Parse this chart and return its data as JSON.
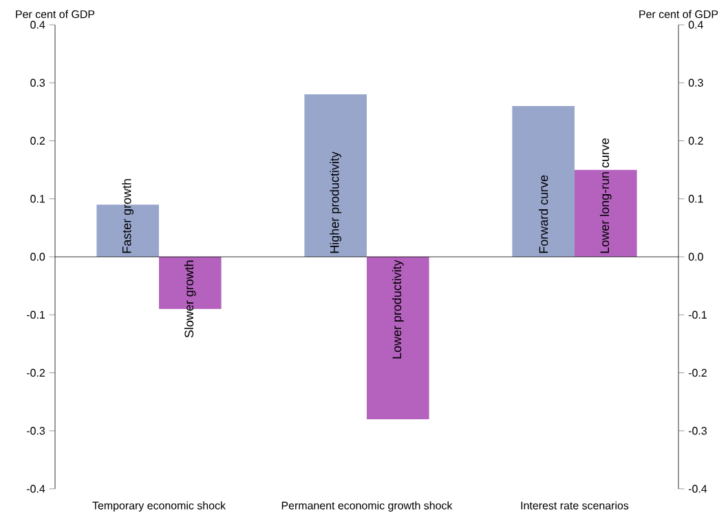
{
  "chart_data": {
    "type": "bar",
    "categories": [
      "Temporary economic shock",
      "Permanent economic growth shock",
      "Interest rate scenarios"
    ],
    "series": [
      {
        "color": "#98a6cc",
        "values": [
          0.09,
          0.28,
          0.26
        ]
      },
      {
        "color": "#b462be",
        "values": [
          -0.09,
          -0.28,
          0.15
        ]
      }
    ],
    "ylabel": "Per cent of GDP",
    "y2label": "Per cent of GDP",
    "ylim": [
      -0.4,
      0.4
    ],
    "yticks": [
      -0.4,
      -0.3,
      -0.2,
      -0.1,
      {
        "value": 0,
        "label": "0.0"
      },
      0.1,
      0.2,
      0.3,
      0.4
    ],
    "y2lim": [
      -0.4,
      0.4
    ],
    "y2ticks": [
      -0.4,
      -0.3,
      -0.2,
      -0.1,
      {
        "value": 0,
        "label": "0.0"
      },
      0.1,
      0.2,
      0.3,
      0.4
    ],
    "annotations": [
      "Faster growth",
      "Slower growth",
      "Higher productivity",
      "Lower productivity",
      "Forward curve",
      "Lower long-run curve"
    ]
  }
}
